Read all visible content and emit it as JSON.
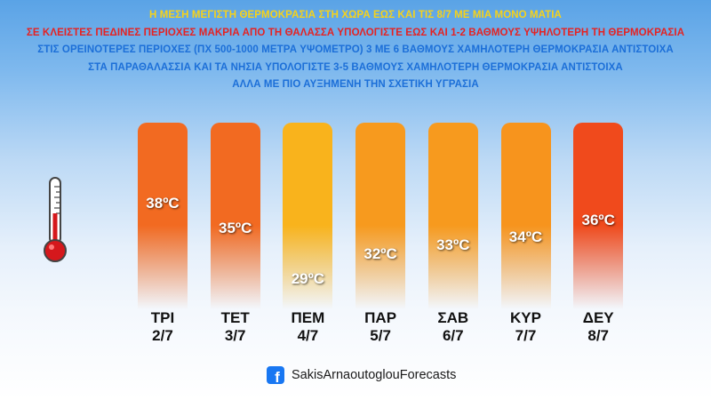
{
  "headlines": [
    "Η ΜΕΣΗ ΜΕΓΙΣΤΗ ΘΕΡΜΟΚΡΑΣΙΑ ΣΤΗ ΧΩΡΑ ΕΩΣ ΚΑΙ ΤΙΣ 8/7 ΜΕ ΜΙΑ ΜΟΝΟ ΜΑΤΙΑ",
    "ΣΕ ΚΛΕΙΣΤΕΣ ΠΕΔΙΝΕΣ ΠΕΡΙΟΧΕΣ ΜΑΚΡΙΑ ΑΠΟ ΤΗ ΘΑΛΑΣΣΑ ΥΠΟΛΟΓΙΣΤΕ ΕΩΣ ΚΑΙ 1-2 ΒΑΘΜΟΥΣ ΥΨΗΛΟΤΕΡΗ ΤΗ ΘΕΡΜΟΚΡΑΣΙΑ",
    "ΣΤΙΣ ΟΡΕΙΝΟΤΕΡΕΣ ΠΕΡΙΟΧΕΣ (ΠΧ 500-1000 ΜΕΤΡΑ ΥΨΟΜΕΤΡΟ) 3 ΜΕ 6 ΒΑΘΜΟΥΣ ΧΑΜΗΛΟΤΕΡΗ ΘΕΡΜΟΚΡΑΣΙΑ ΑΝΤΙΣΤΟΙΧΑ",
    "ΣΤΑ ΠΑΡΑΘΑΛΑΣΣΙΑ ΚΑΙ ΤΑ ΝΗΣΙΑ ΥΠΟΛΟΓΙΣΤΕ 3-5 ΒΑΘΜΟΥΣ ΧΑΜΗΛΟΤΕΡΗ ΘΕΡΜΟΚΡΑΣΙΑ ΑΝΤΙΣΤΟΙΧΑ",
    "ΑΛΛΑ ΜΕ ΠΙΟ ΑΥΞΗΜΕΝΗ ΤΗΝ ΣΧΕΤΙΚΗ ΥΓΡΑΣΙΑ"
  ],
  "headline_colors": [
    "#f6d21a",
    "#e52222",
    "#1c6fd8",
    "#1c6fd8",
    "#1c6fd8"
  ],
  "days": [
    {
      "day": "ΤΡΙ",
      "date": "2/7",
      "temp": 38,
      "label": "38ºC",
      "color": "#f26a21"
    },
    {
      "day": "ΤΕΤ",
      "date": "3/7",
      "temp": 35,
      "label": "35ºC",
      "color": "#f26a21"
    },
    {
      "day": "ΠΕΜ",
      "date": "4/7",
      "temp": 29,
      "label": "29ºC",
      "color": "#f9b31c"
    },
    {
      "day": "ΠΑΡ",
      "date": "5/7",
      "temp": 32,
      "label": "32ºC",
      "color": "#f79a1e"
    },
    {
      "day": "ΣΑΒ",
      "date": "6/7",
      "temp": 33,
      "label": "33ºC",
      "color": "#f79a1e"
    },
    {
      "day": "ΚΥΡ",
      "date": "7/7",
      "temp": 34,
      "label": "34ºC",
      "color": "#f7941d"
    },
    {
      "day": "ΔΕΥ",
      "date": "8/7",
      "temp": 36,
      "label": "36ºC",
      "color": "#f04a1c"
    }
  ],
  "footer": {
    "icon": "facebook-icon",
    "icon_glyph": "f",
    "name": "SakisArnaoutoglouForecasts"
  },
  "thermometer_icon": "thermometer-icon"
}
